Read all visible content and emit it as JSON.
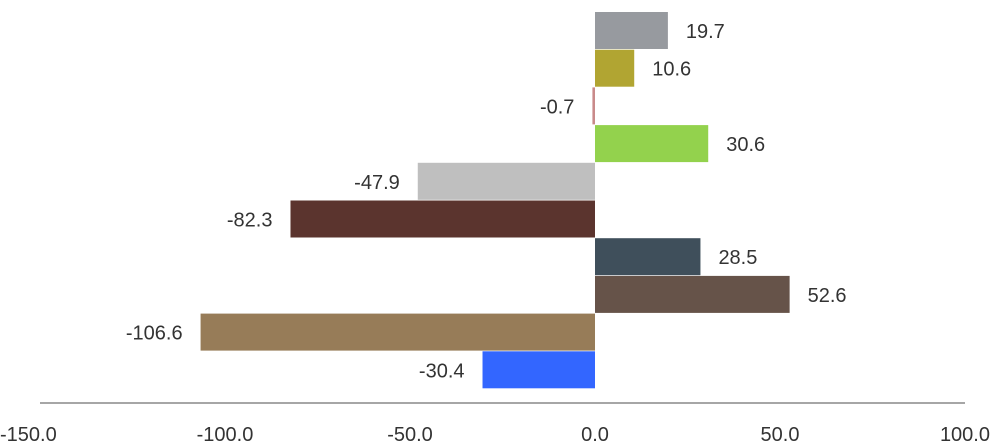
{
  "chart_data": {
    "type": "bar",
    "orientation": "horizontal",
    "values": [
      19.7,
      10.6,
      -0.7,
      30.6,
      -47.9,
      -82.3,
      28.5,
      52.6,
      -106.6,
      -30.4
    ],
    "data_labels": [
      "19.7",
      "10.6",
      "-0.7",
      "30.6",
      "-47.9",
      "-82.3",
      "28.5",
      "52.6",
      "-106.6",
      "-30.4"
    ],
    "colors": [
      "#979a9f",
      "#b1a532",
      "#c98a8a",
      "#93d24d",
      "#bfbfbf",
      "#5b342e",
      "#3f4f5b",
      "#665349",
      "#977c58",
      "#3366ff"
    ],
    "xlim": [
      -150,
      100
    ],
    "xticks": [
      -150,
      -100,
      -50,
      0,
      50,
      100
    ],
    "xtick_labels": [
      "-150.0",
      "-100.0",
      "-50.0",
      "0.0",
      "50.0",
      "100.0"
    ],
    "title": "",
    "xlabel": "",
    "ylabel": "",
    "grid": false,
    "legend": "none",
    "axis_color": "#888888"
  }
}
